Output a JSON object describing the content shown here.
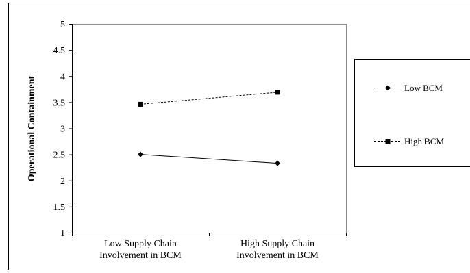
{
  "chart_data": {
    "type": "line",
    "title": "",
    "xlabel": "",
    "ylabel": "Operational Containment",
    "categories": [
      "Low Supply Chain Involvement in BCM",
      "High Supply Chain Involvement in BCM"
    ],
    "category_lines": [
      [
        "Low Supply Chain",
        "Involvement in BCM"
      ],
      [
        "High Supply Chain",
        "Involvement in BCM"
      ]
    ],
    "ylim": [
      1,
      5
    ],
    "yticks": [
      "1",
      "1.5",
      "2",
      "2.5",
      "3",
      "3.5",
      "4",
      "4.5",
      "5"
    ],
    "grid": false,
    "legend_position": "right",
    "series": [
      {
        "name": "Low BCM",
        "values": [
          2.5,
          2.33
        ],
        "marker": "diamond",
        "line_style": "solid",
        "color": "#000000"
      },
      {
        "name": "High BCM",
        "values": [
          3.46,
          3.69
        ],
        "marker": "square",
        "line_style": "dashed",
        "color": "#000000"
      }
    ]
  }
}
